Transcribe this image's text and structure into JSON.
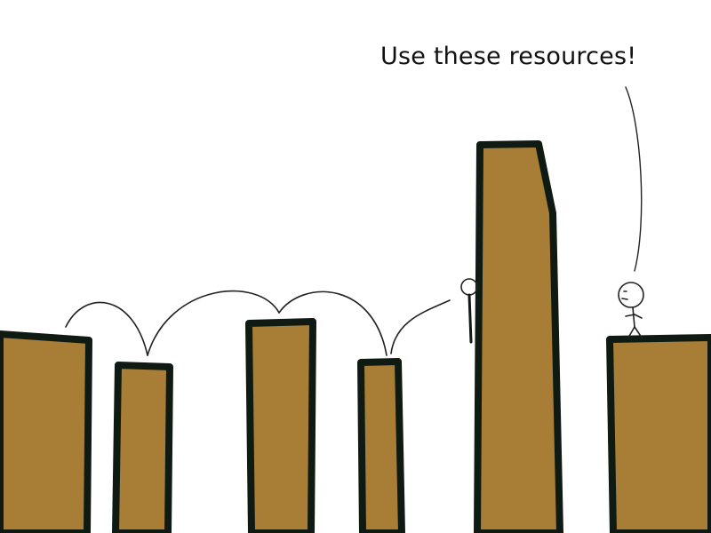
{
  "speech": {
    "text": "Use these resources!"
  },
  "colors": {
    "pillar_fill": "#a87d35",
    "pillar_outline": "#0f1a12",
    "line": "#222222",
    "background": "#ffffff"
  },
  "scene": {
    "pillar_count": 6,
    "figures": [
      "hiding-stick-figure",
      "speaking-stick-figure"
    ]
  }
}
